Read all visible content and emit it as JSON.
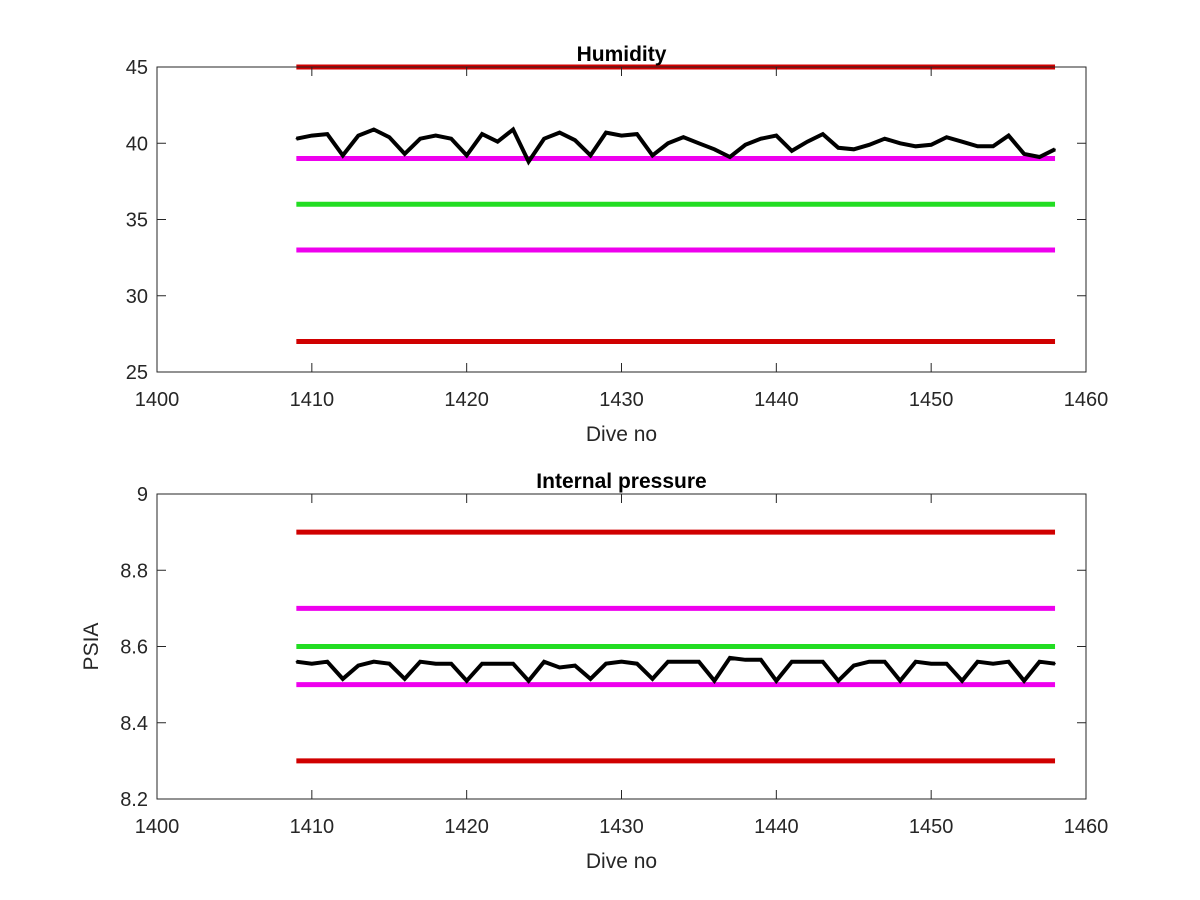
{
  "colors": {
    "red_limit": "#d00000",
    "magenta_limit": "#ee00ee",
    "green_target": "#22dd22",
    "data_line": "#000000",
    "axes": "#262626"
  },
  "chart_data": [
    {
      "type": "line",
      "title": "Humidity",
      "xlabel": "Dive no",
      "ylabel": "",
      "xlim": [
        1400,
        1460
      ],
      "ylim": [
        25,
        45
      ],
      "xticks": [
        1400,
        1410,
        1420,
        1430,
        1440,
        1450,
        1460
      ],
      "xtick_labels": [
        "1400",
        "1410",
        "1420",
        "1430",
        "1440",
        "1450",
        "1460"
      ],
      "yticks": [
        25,
        30,
        35,
        40,
        45
      ],
      "ytick_labels": [
        "25",
        "30",
        "35",
        "40",
        "45"
      ],
      "grid": false,
      "reference_lines": [
        {
          "y": 45,
          "x": [
            1409,
            1458
          ],
          "color": "red_limit"
        },
        {
          "y": 39,
          "x": [
            1409,
            1458
          ],
          "color": "magenta_limit"
        },
        {
          "y": 36,
          "x": [
            1409,
            1458
          ],
          "color": "green_target"
        },
        {
          "y": 33,
          "x": [
            1409,
            1458
          ],
          "color": "magenta_limit"
        },
        {
          "y": 27,
          "x": [
            1409,
            1458
          ],
          "color": "red_limit"
        }
      ],
      "series": [
        {
          "color": "data_line",
          "x": [
            1409,
            1410,
            1411,
            1412,
            1413,
            1414,
            1415,
            1416,
            1417,
            1418,
            1419,
            1420,
            1421,
            1422,
            1423,
            1424,
            1425,
            1426,
            1427,
            1428,
            1429,
            1430,
            1431,
            1432,
            1433,
            1434,
            1435,
            1436,
            1437,
            1438,
            1439,
            1440,
            1441,
            1442,
            1443,
            1444,
            1445,
            1446,
            1447,
            1448,
            1449,
            1450,
            1451,
            1452,
            1453,
            1454,
            1455,
            1456,
            1457,
            1458
          ],
          "values": [
            40.3,
            40.5,
            40.6,
            39.2,
            40.5,
            40.9,
            40.4,
            39.3,
            40.3,
            40.5,
            40.3,
            39.2,
            40.6,
            40.1,
            40.9,
            38.8,
            40.3,
            40.7,
            40.2,
            39.2,
            40.7,
            40.5,
            40.6,
            39.2,
            40.0,
            40.4,
            40.0,
            39.6,
            39.1,
            39.9,
            40.3,
            40.5,
            39.5,
            40.1,
            40.6,
            39.7,
            39.6,
            39.9,
            40.3,
            40.0,
            39.8,
            39.9,
            40.4,
            40.1,
            39.8,
            39.8,
            40.5,
            39.3,
            39.1,
            39.6
          ]
        }
      ]
    },
    {
      "type": "line",
      "title": "Internal pressure",
      "xlabel": "Dive no",
      "ylabel": "PSIA",
      "xlim": [
        1400,
        1460
      ],
      "ylim": [
        8.2,
        9.0
      ],
      "xticks": [
        1400,
        1410,
        1420,
        1430,
        1440,
        1450,
        1460
      ],
      "xtick_labels": [
        "1400",
        "1410",
        "1420",
        "1430",
        "1440",
        "1450",
        "1460"
      ],
      "yticks": [
        8.2,
        8.4,
        8.6,
        8.8,
        9.0
      ],
      "ytick_labels": [
        "8.2",
        "8.4",
        "8.6",
        "8.8",
        "9"
      ],
      "grid": false,
      "reference_lines": [
        {
          "y": 8.9,
          "x": [
            1409,
            1458
          ],
          "color": "red_limit"
        },
        {
          "y": 8.7,
          "x": [
            1409,
            1458
          ],
          "color": "magenta_limit"
        },
        {
          "y": 8.6,
          "x": [
            1409,
            1458
          ],
          "color": "green_target"
        },
        {
          "y": 8.5,
          "x": [
            1409,
            1458
          ],
          "color": "magenta_limit"
        },
        {
          "y": 8.3,
          "x": [
            1409,
            1458
          ],
          "color": "red_limit"
        }
      ],
      "series": [
        {
          "color": "data_line",
          "x": [
            1409,
            1410,
            1411,
            1412,
            1413,
            1414,
            1415,
            1416,
            1417,
            1418,
            1419,
            1420,
            1421,
            1422,
            1423,
            1424,
            1425,
            1426,
            1427,
            1428,
            1429,
            1430,
            1431,
            1432,
            1433,
            1434,
            1435,
            1436,
            1437,
            1438,
            1439,
            1440,
            1441,
            1442,
            1443,
            1444,
            1445,
            1446,
            1447,
            1448,
            1449,
            1450,
            1451,
            1452,
            1453,
            1454,
            1455,
            1456,
            1457,
            1458
          ],
          "values": [
            8.56,
            8.555,
            8.56,
            8.515,
            8.55,
            8.56,
            8.555,
            8.515,
            8.56,
            8.555,
            8.555,
            8.51,
            8.555,
            8.555,
            8.555,
            8.51,
            8.56,
            8.545,
            8.55,
            8.515,
            8.555,
            8.56,
            8.555,
            8.515,
            8.56,
            8.56,
            8.56,
            8.51,
            8.57,
            8.565,
            8.565,
            8.51,
            8.56,
            8.56,
            8.56,
            8.51,
            8.55,
            8.56,
            8.56,
            8.51,
            8.56,
            8.555,
            8.555,
            8.51,
            8.56,
            8.555,
            8.56,
            8.51,
            8.56,
            8.555
          ]
        }
      ]
    }
  ]
}
